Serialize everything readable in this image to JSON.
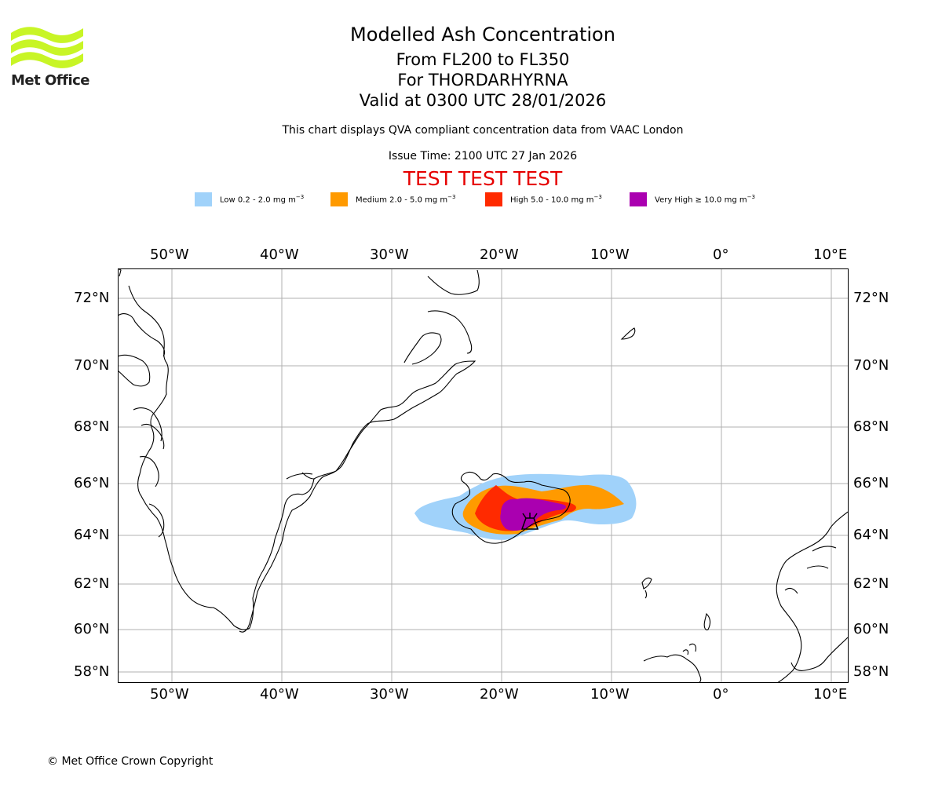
{
  "logo": {
    "text": "Met Office",
    "wave_color": "#c8f526"
  },
  "header": {
    "title": "Modelled Ash Concentration",
    "levels": "From FL200 to FL350",
    "volcano": "For THORDARHYRNA",
    "valid": "Valid at 0300 UTC 28/01/2026",
    "description": "This chart displays QVA compliant concentration data from VAAC London",
    "issue_time": "Issue Time: 2100 UTC 27 Jan 2026",
    "test_banner": "TEST TEST TEST"
  },
  "legend": [
    {
      "label": "Low 0.2 - 2.0 mg m",
      "color": "#a0d2fa"
    },
    {
      "label": "Medium 2.0 - 5.0 mg m",
      "color": "#ff9a00"
    },
    {
      "label": "High 5.0 - 10.0 mg m",
      "color": "#ff2a00"
    },
    {
      "label": "Very High ≥ 10.0 mg m",
      "color": "#aa00b0"
    }
  ],
  "legend_unit_exponent": "−3",
  "map": {
    "lon_labels": [
      "50°W",
      "40°W",
      "30°W",
      "20°W",
      "10°W",
      "0°",
      "10°E"
    ],
    "lat_labels": [
      "72°N",
      "70°N",
      "68°N",
      "66°N",
      "64°N",
      "62°N",
      "60°N",
      "58°N"
    ],
    "volcano_marker": "volcano symbol at approx 17.5°W 64.6°N"
  },
  "footer": {
    "copyright": "© Met Office Crown Copyright"
  }
}
